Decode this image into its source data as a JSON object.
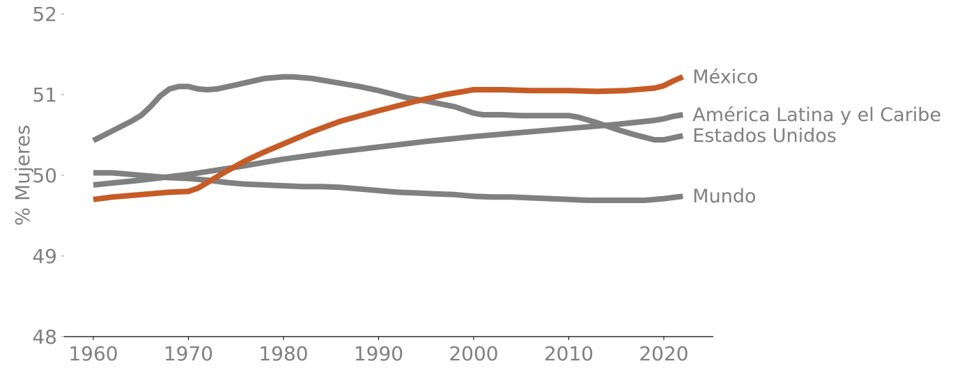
{
  "chart_data": {
    "type": "line",
    "xlabel": "",
    "ylabel": "% Mujeres",
    "xlim": [
      1957,
      2025
    ],
    "ylim": [
      48,
      52
    ],
    "xticks": [
      "1960",
      "1970",
      "1980",
      "1990",
      "2000",
      "2010",
      "2020"
    ],
    "yticks": [
      "48",
      "49",
      "50",
      "51",
      "52"
    ],
    "grid": false,
    "legend": "direct labels at line ends",
    "series": [
      {
        "name": "Mundo",
        "color": "#808080",
        "x": [
          1960,
          1962,
          1964,
          1966,
          1968,
          1970,
          1972,
          1974,
          1976,
          1978,
          1980,
          1982,
          1984,
          1986,
          1988,
          1990,
          1992,
          1994,
          1996,
          1998,
          2000,
          2002,
          2004,
          2006,
          2008,
          2010,
          2012,
          2014,
          2016,
          2018,
          2020,
          2022
        ],
        "y": [
          50.03,
          50.03,
          50.01,
          49.99,
          49.97,
          49.96,
          49.94,
          49.91,
          49.89,
          49.88,
          49.87,
          49.86,
          49.86,
          49.85,
          49.83,
          49.81,
          49.79,
          49.78,
          49.77,
          49.76,
          49.74,
          49.73,
          49.73,
          49.72,
          49.71,
          49.7,
          49.69,
          49.69,
          49.69,
          49.69,
          49.71,
          49.74
        ]
      },
      {
        "name": "América Latina y el Caribe",
        "color": "#808080",
        "x": [
          1960,
          1965,
          1970,
          1975,
          1980,
          1985,
          1990,
          1995,
          2000,
          2005,
          2010,
          2015,
          2019,
          2020,
          2021,
          2022
        ],
        "y": [
          49.88,
          49.94,
          50.01,
          50.1,
          50.2,
          50.28,
          50.35,
          50.42,
          50.48,
          50.53,
          50.58,
          50.63,
          50.68,
          50.7,
          50.73,
          50.75
        ]
      },
      {
        "name": "Estados Unidos",
        "color": "#808080",
        "x": [
          1960,
          1962,
          1964,
          1965,
          1966,
          1967,
          1968,
          1969,
          1970,
          1971,
          1972,
          1973,
          1975,
          1978,
          1980,
          1981,
          1983,
          1985,
          1988,
          1990,
          1993,
          1995,
          1998,
          2000,
          2001,
          2003,
          2005,
          2008,
          2010,
          2011,
          2013,
          2015,
          2017,
          2019,
          2020,
          2022
        ],
        "y": [
          50.43,
          50.55,
          50.67,
          50.74,
          50.85,
          50.98,
          51.07,
          51.1,
          51.1,
          51.07,
          51.06,
          51.07,
          51.12,
          51.2,
          51.22,
          51.22,
          51.2,
          51.16,
          51.1,
          51.05,
          50.96,
          50.92,
          50.85,
          50.77,
          50.75,
          50.75,
          50.74,
          50.74,
          50.74,
          50.72,
          50.65,
          50.57,
          50.5,
          50.44,
          50.44,
          50.49
        ]
      },
      {
        "name": "México",
        "color": "#C75B26",
        "x": [
          1960,
          1962,
          1964,
          1966,
          1968,
          1970,
          1971,
          1972,
          1974,
          1976,
          1978,
          1980,
          1983,
          1986,
          1990,
          1994,
          1997,
          2000,
          2001,
          2003,
          2006,
          2010,
          2013,
          2016,
          2019,
          2020,
          2021,
          2022
        ],
        "y": [
          49.7,
          49.73,
          49.75,
          49.77,
          49.79,
          49.8,
          49.84,
          49.91,
          50.05,
          50.18,
          50.29,
          50.39,
          50.54,
          50.67,
          50.8,
          50.92,
          51.0,
          51.06,
          51.06,
          51.06,
          51.05,
          51.05,
          51.04,
          51.05,
          51.08,
          51.11,
          51.17,
          51.22
        ]
      }
    ]
  }
}
